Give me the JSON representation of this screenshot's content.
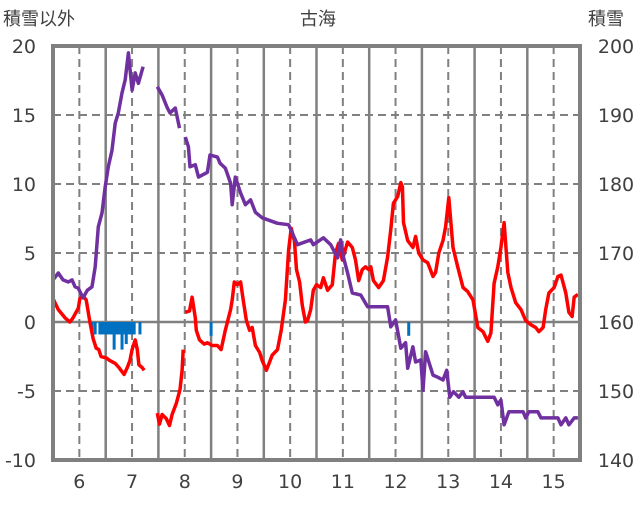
{
  "chart_data": {
    "type": "line",
    "title": "古海",
    "ylabel_left": "積雪以外",
    "ylabel_right": "積雪",
    "xlim": [
      5.5,
      15.5
    ],
    "ylim_left": [
      -10,
      20
    ],
    "ylim_right": [
      140,
      200
    ],
    "x_ticks": [
      6,
      7,
      8,
      9,
      10,
      11,
      12,
      13,
      14,
      15
    ],
    "x_tick_labels": [
      "6",
      "7",
      "8",
      "9",
      "10",
      "11",
      "12",
      "13",
      "14",
      "15"
    ],
    "y_left_ticks": [
      20,
      15,
      10,
      5,
      0,
      -5,
      -10
    ],
    "y_left_tick_labels": [
      "20",
      "15",
      "10",
      "5",
      "0",
      "-5",
      "-10"
    ],
    "y_right_ticks": [
      200,
      190,
      180,
      170,
      160,
      150,
      140
    ],
    "y_right_tick_labels": [
      "200",
      "190",
      "180",
      "170",
      "160",
      "150",
      "140"
    ],
    "grid": true,
    "colors": {
      "temperature": "#ff0000",
      "snow": "#7030a0",
      "precip": "#0070c0",
      "grid": "#808080"
    },
    "series": [
      {
        "name": "red-series",
        "axis": "left",
        "color": "#ff0000",
        "points": [
          [
            5.5,
            1.7
          ],
          [
            5.6,
            0.9
          ],
          [
            5.73,
            0.3
          ],
          [
            5.82,
            0
          ],
          [
            5.88,
            0.3
          ],
          [
            5.98,
            1.0
          ],
          [
            6.01,
            1.7
          ],
          [
            6.07,
            1.9
          ],
          [
            6.13,
            1.6
          ],
          [
            6.2,
            0
          ],
          [
            6.26,
            -1.2
          ],
          [
            6.32,
            -1.9
          ],
          [
            6.37,
            -2.0
          ],
          [
            6.41,
            -2.5
          ],
          [
            6.51,
            -2.6
          ],
          [
            6.58,
            -2.8
          ],
          [
            6.68,
            -3.0
          ],
          [
            6.75,
            -3.3
          ],
          [
            6.81,
            -3.6
          ],
          [
            6.85,
            -3.8
          ],
          [
            6.91,
            -3.3
          ],
          [
            6.96,
            -2.8
          ],
          [
            7.0,
            -2.0
          ],
          [
            7.06,
            -1.3
          ],
          [
            7.1,
            -2.0
          ],
          [
            7.13,
            -3.1
          ],
          [
            7.19,
            -3.3
          ],
          [
            7.23,
            -3.5
          ],
          null,
          [
            7.48,
            -6.6
          ],
          [
            7.52,
            -7.4
          ],
          [
            7.57,
            -6.7
          ],
          [
            7.65,
            -7.0
          ],
          [
            7.71,
            -7.5
          ],
          [
            7.76,
            -6.7
          ],
          [
            7.84,
            -5.9
          ],
          [
            7.91,
            -4.9
          ],
          [
            7.95,
            -3.5
          ],
          [
            7.97,
            -2.0
          ],
          null,
          [
            8.01,
            0.7
          ],
          [
            8.09,
            0.8
          ],
          [
            8.14,
            1.8
          ],
          [
            8.2,
            0.3
          ],
          [
            8.22,
            -0.6
          ],
          [
            8.28,
            -1.3
          ],
          [
            8.37,
            -1.6
          ],
          [
            8.43,
            -1.5
          ],
          [
            8.52,
            -1.7
          ],
          [
            8.62,
            -1.7
          ],
          [
            8.69,
            -2.0
          ],
          [
            8.77,
            -0.6
          ],
          [
            8.87,
            0.9
          ],
          [
            8.9,
            1.6
          ],
          [
            8.94,
            2.9
          ],
          [
            9.0,
            2.7
          ],
          [
            9.06,
            2.9
          ],
          [
            9.11,
            1.6
          ],
          [
            9.17,
            0.1
          ],
          [
            9.23,
            -0.6
          ],
          [
            9.28,
            -0.4
          ],
          [
            9.34,
            -1.7
          ],
          [
            9.42,
            -2.2
          ],
          [
            9.47,
            -2.8
          ],
          [
            9.55,
            -3.5
          ],
          [
            9.61,
            -2.9
          ],
          [
            9.66,
            -2.4
          ],
          [
            9.76,
            -2.0
          ],
          [
            9.83,
            -0.6
          ],
          [
            9.91,
            1.6
          ],
          [
            9.97,
            5.2
          ],
          [
            10.02,
            6.8
          ],
          [
            10.08,
            5.9
          ],
          [
            10.12,
            3.8
          ],
          [
            10.18,
            2.9
          ],
          [
            10.23,
            1.2
          ],
          [
            10.29,
            0
          ],
          [
            10.33,
            0.1
          ],
          [
            10.39,
            0.9
          ],
          [
            10.44,
            2.3
          ],
          [
            10.5,
            2.7
          ],
          [
            10.58,
            2.5
          ],
          [
            10.63,
            3.2
          ],
          [
            10.71,
            2.3
          ],
          [
            10.8,
            2.7
          ],
          [
            10.86,
            5.0
          ],
          [
            10.92,
            5.7
          ],
          [
            10.99,
            4.5
          ],
          [
            11.09,
            5.8
          ],
          [
            11.18,
            5.4
          ],
          [
            11.24,
            4.5
          ],
          [
            11.3,
            3.0
          ],
          [
            11.37,
            3.8
          ],
          [
            11.43,
            4.0
          ],
          [
            11.49,
            3.8
          ],
          [
            11.53,
            4.0
          ],
          [
            11.58,
            3.0
          ],
          [
            11.68,
            2.5
          ],
          [
            11.77,
            3.0
          ],
          [
            11.85,
            4.7
          ],
          [
            11.91,
            6.7
          ],
          [
            11.96,
            8.6
          ],
          [
            12.04,
            9.1
          ],
          [
            12.1,
            10.1
          ],
          [
            12.13,
            9.8
          ],
          [
            12.15,
            7.2
          ],
          [
            12.23,
            5.9
          ],
          [
            12.33,
            5.4
          ],
          [
            12.38,
            6.2
          ],
          [
            12.44,
            5.0
          ],
          [
            12.52,
            4.5
          ],
          [
            12.61,
            4.3
          ],
          [
            12.71,
            3.3
          ],
          [
            12.76,
            3.6
          ],
          [
            12.82,
            5.0
          ],
          [
            12.9,
            5.9
          ],
          [
            12.95,
            6.9
          ],
          [
            13.01,
            9.0
          ],
          [
            13.09,
            5.4
          ],
          [
            13.18,
            4.0
          ],
          [
            13.28,
            2.5
          ],
          [
            13.37,
            2.2
          ],
          [
            13.47,
            1.6
          ],
          [
            13.56,
            -0.4
          ],
          [
            13.66,
            -0.7
          ],
          [
            13.75,
            -1.4
          ],
          [
            13.81,
            -0.8
          ],
          [
            13.87,
            2.8
          ],
          [
            13.94,
            4.0
          ],
          [
            14.0,
            5.4
          ],
          [
            14.06,
            7.2
          ],
          [
            14.13,
            3.6
          ],
          [
            14.19,
            2.5
          ],
          [
            14.28,
            1.4
          ],
          [
            14.38,
            0.9
          ],
          [
            14.47,
            0.1
          ],
          [
            14.57,
            -0.2
          ],
          [
            14.66,
            -0.4
          ],
          [
            14.72,
            -0.7
          ],
          [
            14.8,
            -0.4
          ],
          [
            14.85,
            0.9
          ],
          [
            14.91,
            2.1
          ],
          [
            15.01,
            2.5
          ],
          [
            15.08,
            3.3
          ],
          [
            15.14,
            3.4
          ],
          [
            15.23,
            2.1
          ],
          [
            15.29,
            0.7
          ],
          [
            15.35,
            0.4
          ],
          [
            15.39,
            1.8
          ],
          [
            15.46,
            2.0
          ]
        ]
      },
      {
        "name": "積雪",
        "axis": "right",
        "color": "#7030a0",
        "points": [
          [
            5.5,
            166.1
          ],
          [
            5.6,
            167.1
          ],
          [
            5.69,
            166.1
          ],
          [
            5.79,
            165.8
          ],
          [
            5.86,
            166.1
          ],
          [
            5.92,
            165.1
          ],
          [
            5.98,
            164.9
          ],
          [
            6.07,
            163.5
          ],
          [
            6.15,
            164.6
          ],
          [
            6.24,
            165.1
          ],
          [
            6.3,
            168.0
          ],
          [
            6.36,
            173.8
          ],
          [
            6.43,
            175.8
          ],
          [
            6.49,
            179.6
          ],
          [
            6.55,
            182.5
          ],
          [
            6.62,
            184.9
          ],
          [
            6.68,
            188.8
          ],
          [
            6.74,
            190.3
          ],
          [
            6.81,
            193.2
          ],
          [
            6.87,
            195.1
          ],
          [
            6.93,
            199.0
          ],
          [
            7.0,
            193.6
          ],
          [
            7.06,
            196.1
          ],
          [
            7.12,
            194.6
          ],
          [
            7.21,
            197.0
          ],
          null,
          [
            7.48,
            194.1
          ],
          [
            7.57,
            192.9
          ],
          [
            7.67,
            191.0
          ],
          [
            7.72,
            190.3
          ],
          [
            7.82,
            191.0
          ],
          [
            7.9,
            188.1
          ],
          null,
          [
            8.01,
            186.8
          ],
          [
            8.07,
            185.4
          ],
          [
            8.1,
            182.5
          ],
          [
            8.2,
            182.8
          ],
          [
            8.26,
            181.0
          ],
          [
            8.43,
            181.7
          ],
          [
            8.48,
            184.2
          ],
          [
            8.62,
            183.9
          ],
          [
            8.67,
            183.0
          ],
          [
            8.77,
            182.3
          ],
          [
            8.87,
            180.1
          ],
          [
            8.9,
            177.0
          ],
          [
            8.96,
            181.0
          ],
          [
            9.06,
            178.7
          ],
          [
            9.15,
            177.0
          ],
          [
            9.25,
            177.7
          ],
          [
            9.34,
            175.9
          ],
          [
            9.47,
            175.1
          ],
          [
            9.76,
            174.3
          ],
          [
            9.97,
            174.1
          ],
          [
            10.14,
            171.2
          ],
          [
            10.39,
            171.9
          ],
          [
            10.44,
            171.2
          ],
          [
            10.63,
            172.2
          ],
          [
            10.77,
            171.2
          ],
          [
            10.9,
            169.3
          ],
          [
            10.96,
            171.9
          ],
          [
            11.01,
            169.4
          ],
          [
            11.09,
            167.1
          ],
          [
            11.18,
            164.2
          ],
          [
            11.34,
            163.9
          ],
          [
            11.47,
            162.2
          ],
          [
            11.85,
            162.2
          ],
          [
            11.91,
            159.3
          ],
          [
            12.0,
            160.3
          ],
          [
            12.1,
            156.2
          ],
          [
            12.19,
            157.0
          ],
          [
            12.23,
            153.3
          ],
          [
            12.33,
            156.4
          ],
          [
            12.38,
            154.2
          ],
          [
            12.48,
            154.5
          ],
          [
            12.52,
            150.1
          ],
          [
            12.57,
            155.7
          ],
          [
            12.71,
            152.3
          ],
          [
            12.8,
            152.0
          ],
          [
            12.9,
            151.6
          ],
          [
            12.97,
            153.0
          ],
          [
            13.03,
            149.1
          ],
          [
            13.1,
            149.9
          ],
          [
            13.2,
            149.1
          ],
          [
            13.28,
            149.9
          ],
          [
            13.33,
            149.1
          ],
          [
            13.87,
            149.1
          ],
          [
            13.94,
            148.0
          ],
          [
            14.0,
            148.7
          ],
          [
            14.06,
            145.1
          ],
          [
            14.15,
            147.0
          ],
          [
            14.42,
            147.0
          ],
          [
            14.47,
            146.1
          ],
          [
            14.53,
            147.0
          ],
          [
            14.7,
            147.0
          ],
          [
            14.76,
            146.1
          ],
          [
            15.08,
            146.1
          ],
          [
            15.14,
            145.1
          ],
          [
            15.23,
            146.1
          ],
          [
            15.29,
            145.1
          ],
          [
            15.39,
            146.1
          ],
          [
            15.46,
            146.1
          ]
        ]
      }
    ],
    "bars": {
      "name": "blue-bars",
      "axis": "left",
      "color": "#0070c0",
      "points": [
        [
          6.24,
          -0.9
        ],
        [
          6.3,
          -0.9
        ],
        [
          6.39,
          -0.9
        ],
        [
          6.43,
          -0.9
        ],
        [
          6.47,
          -0.9
        ],
        [
          6.51,
          -0.9
        ],
        [
          6.55,
          -0.9
        ],
        [
          6.58,
          -0.9
        ],
        [
          6.62,
          -0.9
        ],
        [
          6.66,
          -2.0
        ],
        [
          6.7,
          -0.9
        ],
        [
          6.74,
          -0.9
        ],
        [
          6.77,
          -0.9
        ],
        [
          6.81,
          -2.0
        ],
        [
          6.85,
          -0.9
        ],
        [
          6.89,
          -1.6
        ],
        [
          6.93,
          -0.9
        ],
        [
          6.96,
          -0.9
        ],
        [
          7.0,
          -0.9
        ],
        [
          7.04,
          -0.9
        ],
        [
          7.15,
          -0.9
        ],
        [
          8.5,
          -1.0
        ],
        [
          12.25,
          -1.0
        ]
      ]
    }
  }
}
